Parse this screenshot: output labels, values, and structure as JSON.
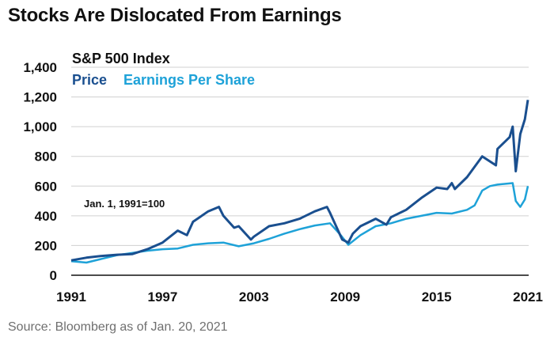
{
  "title": "Stocks Are Dislocated From Earnings",
  "source": "Source: Bloomberg as of Jan. 20, 2021",
  "colors": {
    "price": "#1a4f8f",
    "eps": "#1ea2d8",
    "grid": "#d0d0d0"
  },
  "chart_data": {
    "type": "line",
    "title": "S&P 500 Index",
    "annotation": "Jan. 1, 1991=100",
    "xlim": [
      1991,
      2021.05
    ],
    "ylim": [
      0,
      1400
    ],
    "x_ticks": [
      1991,
      1997,
      2003,
      2009,
      2015,
      2021
    ],
    "x_tick_labels": [
      "1991",
      "1997",
      "2003",
      "2009",
      "2015",
      "2021"
    ],
    "y_ticks": [
      0,
      200,
      400,
      600,
      800,
      1000,
      1200,
      1400
    ],
    "y_tick_labels": [
      "0",
      "200",
      "400",
      "600",
      "800",
      "1,000",
      "1,200",
      "1,400"
    ],
    "grid": "horizontal",
    "legend": "top-left",
    "series": [
      {
        "name": "Price",
        "x": [
          1991,
          1992,
          1993,
          1994,
          1995,
          1996,
          1997,
          1998,
          1998.6,
          1999,
          2000,
          2000.7,
          2001,
          2001.7,
          2002,
          2002.8,
          2003,
          2004,
          2005,
          2006,
          2007,
          2007.8,
          2008,
          2008.8,
          2009.2,
          2009.5,
          2010,
          2011,
          2011.7,
          2012,
          2013,
          2014,
          2015,
          2015.7,
          2016,
          2016.2,
          2017,
          2018,
          2018.9,
          2019,
          2019.8,
          2020.0,
          2020.2,
          2020.5,
          2020.8,
          2021.0
        ],
        "values": [
          100,
          118,
          130,
          138,
          142,
          175,
          220,
          300,
          270,
          360,
          430,
          460,
          400,
          320,
          330,
          240,
          260,
          330,
          350,
          380,
          430,
          460,
          420,
          240,
          220,
          280,
          330,
          380,
          340,
          390,
          440,
          520,
          590,
          580,
          620,
          580,
          660,
          800,
          740,
          850,
          930,
          1000,
          700,
          950,
          1050,
          1180
        ]
      },
      {
        "name": "Earnings Per Share",
        "x": [
          1991,
          1992,
          1993,
          1994,
          1995,
          1996,
          1997,
          1998,
          1999,
          2000,
          2001,
          2002,
          2003,
          2004,
          2005,
          2006,
          2007,
          2008,
          2008.7,
          2009.2,
          2010,
          2011,
          2012,
          2013,
          2014,
          2015,
          2016,
          2017,
          2017.5,
          2018,
          2018.5,
          2019,
          2020,
          2020.2,
          2020.5,
          2020.8,
          2021.0
        ],
        "values": [
          95,
          85,
          110,
          135,
          150,
          165,
          175,
          180,
          205,
          215,
          220,
          195,
          215,
          245,
          280,
          310,
          335,
          350,
          270,
          205,
          270,
          330,
          350,
          380,
          400,
          420,
          415,
          440,
          470,
          570,
          600,
          610,
          620,
          500,
          460,
          510,
          600
        ]
      }
    ]
  }
}
